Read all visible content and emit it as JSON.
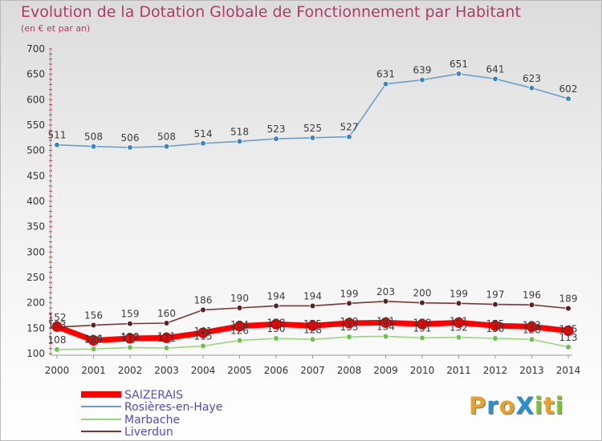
{
  "title": "Evolution de la Dotation Globale de Fonctionnement par Habitant",
  "subtitle": "(en € et par an)",
  "logo": {
    "text": "ProXiti",
    "letter_colors": [
      "#e9a126",
      "#2a8fd0",
      "#e9a126",
      "#2a8fd0",
      "#7fbf3a",
      "#e9a126",
      "#7fbf3a"
    ]
  },
  "colors": {
    "axis_text": "#333333",
    "axis_line": "#999999",
    "tick_marks": "#cc3344"
  },
  "chart_data": {
    "type": "line",
    "x": [
      "2000",
      "2001",
      "2002",
      "2003",
      "2004",
      "2005",
      "2006",
      "2007",
      "2008",
      "2009",
      "2010",
      "2011",
      "2012",
      "2013",
      "2014"
    ],
    "ylim": [
      100,
      700
    ],
    "yticks": [
      100,
      150,
      200,
      250,
      300,
      350,
      400,
      450,
      500,
      550,
      600,
      650,
      700
    ],
    "grid": false,
    "legend_position": "bottom-left",
    "series": [
      {
        "name": "SAIZERAIS",
        "color": "#ff0000",
        "marker_color": "#ff0000",
        "emphasis": true,
        "values": [
          153,
          126,
          130,
          131,
          141,
          154,
          158,
          155,
          160,
          161,
          158,
          161,
          155,
          153,
          145
        ],
        "labels": [
          "153",
          "126",
          "130",
          "131",
          "141",
          "154",
          "158",
          "155",
          "160",
          "161",
          "158",
          "161",
          "155",
          "153",
          "145"
        ]
      },
      {
        "name": "Rosières-en-Haye",
        "color": "#6a9fc9",
        "marker_color": "#3d86c4",
        "values": [
          511,
          508,
          506,
          508,
          514,
          518,
          523,
          525,
          527,
          631,
          639,
          651,
          641,
          623,
          602
        ],
        "labels": [
          "511",
          "508",
          "506",
          "508",
          "514",
          "518",
          "523",
          "525",
          "527",
          "631",
          "639",
          "651",
          "641",
          "623",
          "602"
        ]
      },
      {
        "name": "Marbache",
        "color": "#98d67c",
        "marker_color": "#6dc24a",
        "values": [
          108,
          109,
          112,
          111,
          115,
          126,
          130,
          128,
          133,
          134,
          131,
          132,
          130,
          128,
          113
        ],
        "labels": [
          "108",
          "109",
          "112",
          "111",
          "115",
          "126",
          "130",
          "128",
          "133",
          "134",
          "131",
          "132",
          "130",
          "128",
          "113"
        ]
      },
      {
        "name": "Liverdun",
        "color": "#7a3535",
        "marker_color": "#5e2020",
        "values": [
          152,
          156,
          159,
          160,
          186,
          190,
          194,
          194,
          199,
          203,
          200,
          199,
          197,
          196,
          189
        ],
        "labels": [
          "152",
          "156",
          "159",
          "160",
          "186",
          "190",
          "194",
          "194",
          "199",
          "203",
          "200",
          "199",
          "197",
          "196",
          "189"
        ]
      }
    ]
  }
}
